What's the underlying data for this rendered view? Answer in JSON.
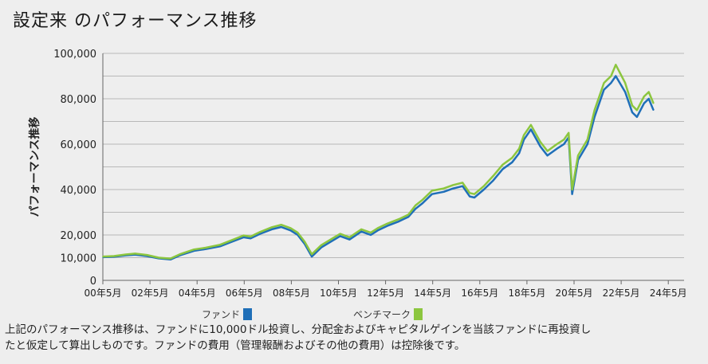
{
  "title": "設定来 のパフォーマンス推移",
  "chart_data": {
    "type": "line",
    "ylabel": "パフォーマンス推移",
    "xlabel": "",
    "ylim": [
      0,
      100000
    ],
    "yticks": [
      0,
      10000,
      20000,
      40000,
      60000,
      80000,
      100000
    ],
    "ytick_labels": [
      "0",
      "10,000",
      "20,000",
      "40,000",
      "60,000",
      "80,000",
      "100,000"
    ],
    "xticks": [
      2000.33,
      2002.33,
      2004.33,
      2006.33,
      2008.33,
      2010.33,
      2012.33,
      2014.33,
      2016.33,
      2018.33,
      2020.33,
      2022.33,
      2024.33
    ],
    "xtick_labels": [
      "00年5月",
      "02年5月",
      "04年5月",
      "06年5月",
      "08年5月",
      "10年5月",
      "12年5月",
      "14年5月",
      "16年5月",
      "18年5月",
      "20年5月",
      "22年5月",
      "24年5月"
    ],
    "xlim": [
      2000.33,
      2025.0
    ],
    "grid": true,
    "legend_position": "bottom",
    "series": [
      {
        "name": "ファンド",
        "color": "#1f6fb8",
        "x": [
          2000.33,
          2000.8,
          2001.3,
          2001.7,
          2002.2,
          2002.7,
          2003.2,
          2003.6,
          2004.2,
          2004.7,
          2005.3,
          2005.8,
          2006.3,
          2006.6,
          2007.0,
          2007.5,
          2007.9,
          2008.3,
          2008.6,
          2008.9,
          2009.2,
          2009.6,
          2010.0,
          2010.4,
          2010.8,
          2011.3,
          2011.7,
          2012.0,
          2012.4,
          2012.9,
          2013.3,
          2013.6,
          2013.9,
          2014.3,
          2014.8,
          2015.2,
          2015.6,
          2015.9,
          2016.1,
          2016.5,
          2016.9,
          2017.3,
          2017.7,
          2018.0,
          2018.2,
          2018.5,
          2018.9,
          2019.2,
          2019.6,
          2019.9,
          2020.1,
          2020.25,
          2020.5,
          2020.9,
          2021.2,
          2021.6,
          2021.9,
          2022.1,
          2022.5,
          2022.8,
          2023.0,
          2023.3,
          2023.5,
          2023.7
        ],
        "y": [
          10200,
          10400,
          11000,
          11300,
          10700,
          9700,
          9200,
          11000,
          13000,
          13800,
          15000,
          17000,
          19000,
          18500,
          20500,
          22500,
          23500,
          22000,
          20000,
          16000,
          10500,
          14500,
          17000,
          19500,
          18000,
          21500,
          20000,
          22000,
          24000,
          26000,
          28000,
          31500,
          34000,
          38000,
          39000,
          40500,
          41500,
          37000,
          36500,
          40000,
          44000,
          49000,
          52000,
          56000,
          62000,
          66500,
          59000,
          55000,
          58000,
          60000,
          63000,
          38000,
          53000,
          60000,
          72000,
          84000,
          87000,
          90000,
          83000,
          74000,
          72000,
          78000,
          80000,
          75000
        ]
      },
      {
        "name": "ベンチマーク",
        "color": "#8cc63f",
        "x": [
          2000.33,
          2000.8,
          2001.3,
          2001.7,
          2002.2,
          2002.7,
          2003.2,
          2003.6,
          2004.2,
          2004.7,
          2005.3,
          2005.8,
          2006.3,
          2006.6,
          2007.0,
          2007.5,
          2007.9,
          2008.3,
          2008.6,
          2008.9,
          2009.2,
          2009.6,
          2010.0,
          2010.4,
          2010.8,
          2011.3,
          2011.7,
          2012.0,
          2012.4,
          2012.9,
          2013.3,
          2013.6,
          2013.9,
          2014.3,
          2014.8,
          2015.2,
          2015.6,
          2015.9,
          2016.1,
          2016.5,
          2016.9,
          2017.3,
          2017.7,
          2018.0,
          2018.2,
          2018.5,
          2018.9,
          2019.2,
          2019.6,
          2019.9,
          2020.1,
          2020.25,
          2020.5,
          2020.9,
          2021.2,
          2021.6,
          2021.9,
          2022.1,
          2022.5,
          2022.8,
          2023.0,
          2023.3,
          2023.5,
          2023.7
        ],
        "y": [
          10500,
          10700,
          11400,
          11800,
          11200,
          10000,
          9600,
          11500,
          13600,
          14400,
          15700,
          17700,
          19800,
          19300,
          21300,
          23400,
          24500,
          23000,
          21000,
          17000,
          11500,
          15500,
          18000,
          20500,
          19000,
          22500,
          21000,
          23000,
          25000,
          27000,
          29000,
          33000,
          35500,
          39500,
          40500,
          42000,
          43000,
          38500,
          38000,
          41500,
          46000,
          51000,
          54000,
          58000,
          64000,
          68500,
          61000,
          57000,
          60000,
          62000,
          65000,
          40000,
          55000,
          62000,
          75000,
          87000,
          90000,
          95000,
          87000,
          77000,
          75000,
          81000,
          83000,
          78000
        ]
      }
    ]
  },
  "note": {
    "line1": "上記のパフォーマンス推移は、ファンドに10,000ドル投資し、分配金およびキャピタルゲインを当該ファンドに再投資し",
    "line2": "たと仮定して算出しものです。ファンドの費用（管理報酬およびその他の費用）は控除後です。"
  }
}
